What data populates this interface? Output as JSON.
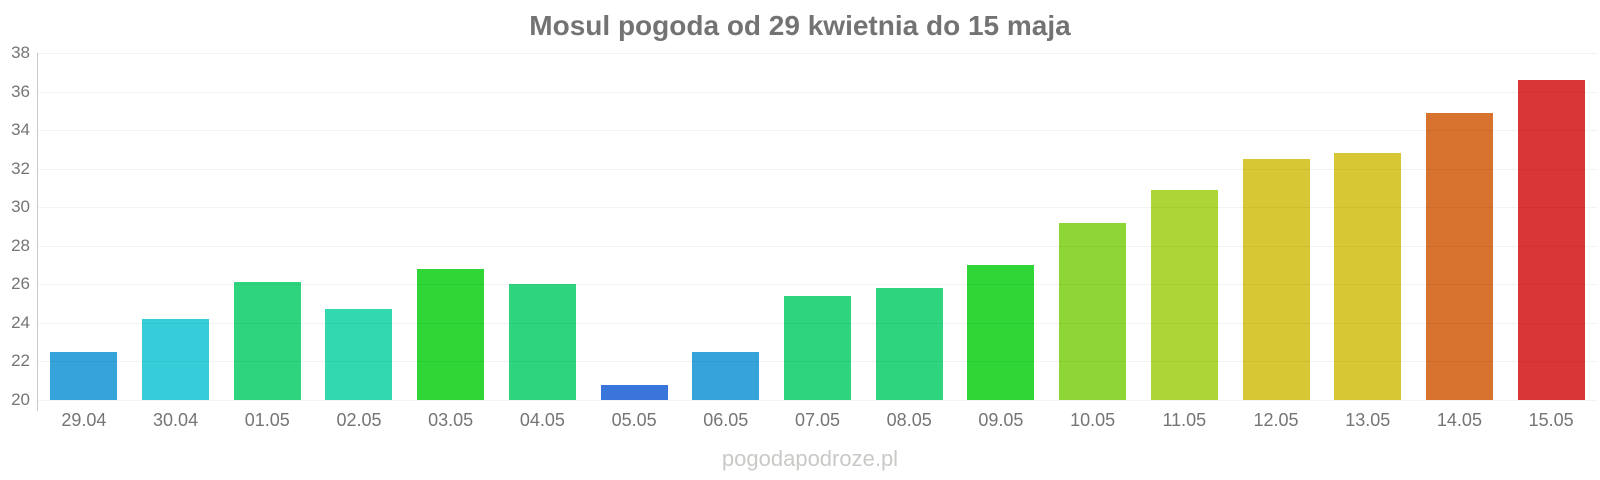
{
  "title": {
    "text": "Mosul pogoda od 29 kwietnia do 15 maja",
    "color": "#737373"
  },
  "footer": {
    "text": "pogodapodroze.pl",
    "color": "#c9c9c6"
  },
  "chart_data": {
    "type": "bar",
    "title": "Mosul pogoda od 29 kwietnia do 15 maja",
    "xlabel": "",
    "ylabel": "",
    "categories": [
      "29.04",
      "30.04",
      "01.05",
      "02.05",
      "03.05",
      "04.05",
      "05.05",
      "06.05",
      "07.05",
      "08.05",
      "09.05",
      "10.05",
      "11.05",
      "12.05",
      "13.05",
      "14.05",
      "15.05"
    ],
    "values": [
      22.5,
      24.2,
      26.1,
      24.7,
      26.8,
      26.0,
      20.8,
      22.5,
      25.4,
      25.8,
      27.0,
      29.2,
      30.9,
      32.5,
      32.8,
      34.9,
      36.6
    ],
    "bar_colors": [
      "#36a3da",
      "#36ccd9",
      "#2fd47e",
      "#32d9ae",
      "#2fd636",
      "#2fd47e",
      "#3a75dc",
      "#36a3da",
      "#2fd47e",
      "#2fd47e",
      "#2fd636",
      "#8ed636",
      "#abd636",
      "#d8c734",
      "#d8c734",
      "#d8732f",
      "#d93636"
    ],
    "ylim": [
      20,
      38
    ],
    "yticks": [
      20,
      22,
      24,
      26,
      28,
      30,
      32,
      34,
      36,
      38
    ],
    "grid": true,
    "legend": "none",
    "axis_color": "#c9c9c9",
    "grid_color": "rgba(0,0,0,0.09)",
    "tick_label_color": "#757575",
    "watermark": "pogodapodroze.pl"
  }
}
